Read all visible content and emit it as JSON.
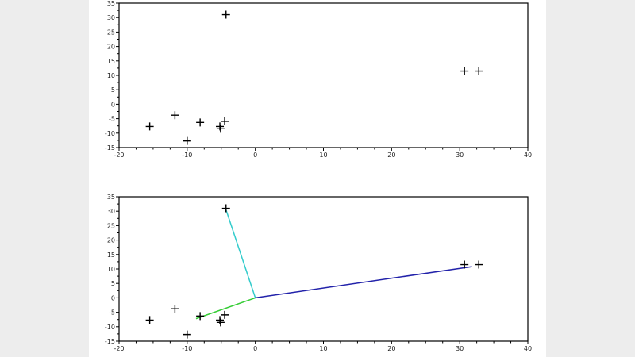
{
  "chart_data": [
    {
      "type": "scatter",
      "marker": "plus",
      "xlim": [
        -20,
        40
      ],
      "ylim": [
        -15,
        35
      ],
      "xticks": [
        -20,
        -10,
        0,
        10,
        20,
        30,
        40
      ],
      "yticks": [
        -15,
        -10,
        -5,
        0,
        5,
        10,
        15,
        20,
        25,
        30,
        35
      ],
      "grid": false,
      "points": [
        [
          -15.5,
          -7.7
        ],
        [
          -11.8,
          -3.8
        ],
        [
          -10,
          -12.7
        ],
        [
          -8.1,
          -6.3
        ],
        [
          -5.2,
          -7.7
        ],
        [
          -5.1,
          -8.5
        ],
        [
          -4.5,
          -5.9
        ],
        [
          -4.3,
          31
        ],
        [
          30.7,
          11.5
        ],
        [
          32.8,
          11.5
        ]
      ],
      "marker_color": "#000000"
    },
    {
      "type": "scatter",
      "marker": "plus",
      "xlim": [
        -20,
        40
      ],
      "ylim": [
        -15,
        35
      ],
      "xticks": [
        -20,
        -10,
        0,
        10,
        20,
        30,
        40
      ],
      "yticks": [
        -15,
        -10,
        -5,
        0,
        5,
        10,
        15,
        20,
        25,
        30,
        35
      ],
      "grid": false,
      "points": [
        [
          -15.5,
          -7.7
        ],
        [
          -11.8,
          -3.8
        ],
        [
          -10,
          -12.7
        ],
        [
          -8.1,
          -6.3
        ],
        [
          -5.2,
          -7.7
        ],
        [
          -5.1,
          -8.5
        ],
        [
          -4.5,
          -5.9
        ],
        [
          -4.3,
          31
        ],
        [
          30.7,
          11.5
        ],
        [
          32.8,
          11.5
        ]
      ],
      "marker_color": "#000000",
      "vectors": [
        {
          "from": [
            0,
            0
          ],
          "to": [
            -4.3,
            30.5
          ],
          "color": "#33cccc"
        },
        {
          "from": [
            0,
            0
          ],
          "to": [
            -8.7,
            -7.2
          ],
          "color": "#33cc33"
        },
        {
          "from": [
            0,
            0
          ],
          "to": [
            31.8,
            10.8
          ],
          "color": "#2222aa"
        }
      ]
    }
  ]
}
